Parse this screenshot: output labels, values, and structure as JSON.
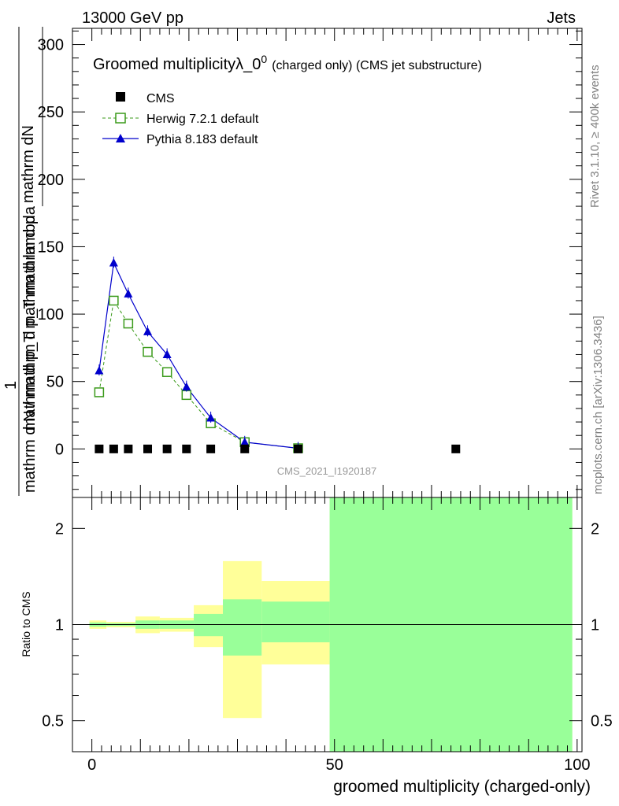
{
  "header": {
    "left": "13000 GeV pp",
    "right": "Jets"
  },
  "side_labels": {
    "rivet": "Rivet 3.1.10, ≥ 400k events",
    "mcplots": "mcplots.cern.ch [arXiv:1306.3436]"
  },
  "colors": {
    "cms": "#000000",
    "herwig": "#3a9a1a",
    "pythia": "#0000cc",
    "band_yellow": "#ffff99",
    "band_green": "#99ff99"
  },
  "chart_data": [
    {
      "type": "line",
      "title_main": "Groomed multiplicityλ_0",
      "title_sup": "0",
      "title_suffix": "(charged only) (CMS jet substructure)",
      "ylabel_num": "mathrm dN",
      "ylabel_den": "mathrm d p_T mathrm d lambda",
      "ylabel_pre": "1",
      "ylabel_pre_den": "mathrm d N / mathrm d p_T mathrm d p",
      "watermark": "CMS_2021_I1920187",
      "xlim": [
        -4,
        101
      ],
      "ylim": [
        -36,
        312
      ],
      "yticks": [
        0,
        50,
        100,
        150,
        200,
        250,
        300
      ],
      "yticklabels": [
        "0",
        "50",
        "100",
        "150",
        "200",
        "250",
        "300"
      ],
      "legend_position": "top-left",
      "series": [
        {
          "name": "CMS",
          "marker": "square",
          "x": [
            1.5,
            4.5,
            7.5,
            11.5,
            15.5,
            19.5,
            24.5,
            31.5,
            42.5,
            75
          ],
          "y": [
            0,
            0,
            0,
            0,
            0,
            0,
            0,
            0,
            0,
            0
          ]
        },
        {
          "name": "Herwig 7.2.1 default",
          "marker": "open-square",
          "line": "dashed",
          "x": [
            1.5,
            4.5,
            7.5,
            11.5,
            15.5,
            19.5,
            24.5,
            31.5,
            42.5
          ],
          "y": [
            42,
            110,
            93,
            72,
            57,
            40,
            19,
            5,
            0.5
          ]
        },
        {
          "name": "Pythia 8.183 default",
          "marker": "triangle",
          "line": "solid",
          "x": [
            1.5,
            4.5,
            7.5,
            11.5,
            15.5,
            19.5,
            24.5,
            31.5,
            42.5
          ],
          "y": [
            58,
            138,
            115,
            87,
            70,
            46,
            23,
            5,
            0.5
          ]
        }
      ]
    },
    {
      "type": "area",
      "ylabel": "Ratio to CMS",
      "xlabel": "groomed multiplicity (charged-only)",
      "xticks": [
        0,
        50,
        100
      ],
      "xticklabels": [
        "0",
        "50",
        "100"
      ],
      "yticks": [
        0.5,
        1,
        2
      ],
      "yticklabels": [
        "0.5",
        "1",
        "2"
      ],
      "ylim": [
        0.4,
        2.5
      ],
      "reference": 1,
      "bands": [
        {
          "x0": -0.5,
          "x1": 3,
          "yellow": [
            0.97,
            1.03
          ],
          "green": [
            0.985,
            1.015
          ]
        },
        {
          "x0": 3,
          "x1": 9,
          "yellow": [
            0.98,
            1.02
          ],
          "green": [
            0.99,
            1.01
          ]
        },
        {
          "x0": 9,
          "x1": 14,
          "yellow": [
            0.94,
            1.06
          ],
          "green": [
            0.97,
            1.03
          ]
        },
        {
          "x0": 14,
          "x1": 21,
          "yellow": [
            0.95,
            1.05
          ],
          "green": [
            0.97,
            1.03
          ]
        },
        {
          "x0": 21,
          "x1": 27,
          "yellow": [
            0.85,
            1.15
          ],
          "green": [
            0.92,
            1.08
          ]
        },
        {
          "x0": 27,
          "x1": 35,
          "yellow": [
            0.51,
            1.58
          ],
          "green": [
            0.8,
            1.2
          ]
        },
        {
          "x0": 35,
          "x1": 49,
          "yellow": [
            0.75,
            1.37
          ],
          "green": [
            0.88,
            1.18
          ]
        },
        {
          "x0": 49,
          "x1": 99,
          "yellow": [
            0.4,
            2.5
          ],
          "green": [
            0.4,
            2.5
          ]
        }
      ]
    }
  ]
}
